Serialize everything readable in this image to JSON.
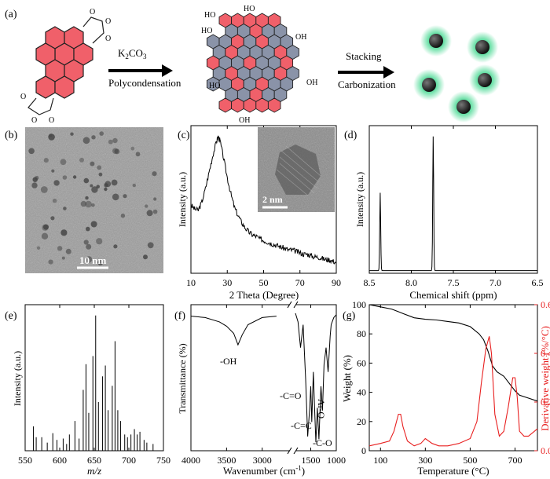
{
  "panel_labels": [
    "(a)",
    "(b)",
    "(c)",
    "(d)",
    "(e)",
    "(f)",
    "(g)"
  ],
  "panel_a": {
    "reagent": "K",
    "reagent_sub": "2",
    "reagent_tail": "CO",
    "reagent_sub2": "3",
    "step1": "Polycondensation",
    "step2_top": "Stacking",
    "step2_bottom": "Carbonization",
    "cooh_labels": [
      "HO",
      "OH",
      "HO",
      "OH",
      "HO",
      "OH",
      "OH",
      "HO",
      "OH"
    ],
    "colors": {
      "red": "#f0606a",
      "gray": "#8a93a8",
      "dot": "#2a2a2a",
      "halo": "#3dd68c"
    }
  },
  "panel_b": {
    "scale_label": "10 nm"
  },
  "inset_c": {
    "scale_label": "2 nm"
  },
  "chart_data": [
    {
      "id": "c",
      "type": "line",
      "xlabel": "2 Theta (Degree)",
      "ylabel": "Intensity (a.u.)",
      "xlim": [
        10,
        90
      ],
      "xticks": [
        10,
        30,
        50,
        70,
        90
      ],
      "x": [
        10,
        12,
        14,
        16,
        18,
        20,
        22,
        24,
        25,
        26,
        28,
        30,
        32,
        34,
        36,
        38,
        40,
        42,
        44,
        46,
        48,
        50,
        52,
        54,
        56,
        58,
        60,
        62,
        64,
        66,
        68,
        70,
        72,
        74,
        76,
        78,
        80,
        82,
        84,
        86,
        88,
        90
      ],
      "values": [
        0.5,
        0.47,
        0.46,
        0.52,
        0.62,
        0.74,
        0.86,
        0.96,
        1.0,
        0.97,
        0.84,
        0.7,
        0.58,
        0.48,
        0.42,
        0.37,
        0.33,
        0.3,
        0.28,
        0.27,
        0.25,
        0.24,
        0.23,
        0.22,
        0.21,
        0.2,
        0.19,
        0.18,
        0.17,
        0.17,
        0.16,
        0.15,
        0.14,
        0.14,
        0.13,
        0.12,
        0.12,
        0.11,
        0.1,
        0.1,
        0.09,
        0.08
      ],
      "color": "#000000"
    },
    {
      "id": "d",
      "type": "line",
      "xlabel": "Chemical shift (ppm)",
      "ylabel": "Intensity (a.u.)",
      "xlim": [
        8.5,
        6.5
      ],
      "xticks": [
        "8.5",
        "8.0",
        "7.5",
        "7.0",
        "6.5"
      ],
      "peaks": [
        {
          "x": 8.37,
          "value": 0.58
        },
        {
          "x": 7.74,
          "value": 1.0
        }
      ],
      "color": "#000000"
    },
    {
      "id": "e",
      "type": "bar",
      "xlabel": "m/z",
      "ylabel": "Intensity (a.u.)",
      "xlim": [
        550,
        750
      ],
      "xticks": [
        550,
        600,
        650,
        700,
        750
      ],
      "x": [
        562,
        566,
        574,
        582,
        590,
        596,
        605,
        610,
        614,
        622,
        628,
        634,
        638,
        642,
        648,
        652,
        656,
        662,
        666,
        670,
        676,
        680,
        684,
        688,
        694,
        698,
        703,
        708,
        712,
        716,
        722,
        726,
        735
      ],
      "values": [
        0.18,
        0.1,
        0.1,
        0.06,
        0.13,
        0.08,
        0.09,
        0.05,
        0.12,
        0.22,
        0.09,
        0.45,
        0.64,
        0.28,
        0.7,
        1.0,
        0.36,
        0.55,
        0.63,
        0.3,
        0.48,
        0.81,
        0.3,
        0.22,
        0.12,
        0.1,
        0.12,
        0.16,
        0.12,
        0.14,
        0.08,
        0.06,
        0.05
      ],
      "color": "#000000"
    },
    {
      "id": "f",
      "type": "line",
      "xlabel": "Wavenumber (cm",
      "xlabel_sup": "-1",
      "xlabel_end": ")",
      "ylabel": "Transmittance (%)",
      "xticks": [
        4000,
        3500,
        3000,
        1500,
        1000
      ],
      "x": [
        4000,
        3800,
        3600,
        3500,
        3400,
        3340,
        3280,
        3200,
        3000,
        2800,
        1800,
        1750,
        1700,
        1650,
        1600,
        1560,
        1520,
        1500,
        1480,
        1450,
        1420,
        1400,
        1370,
        1340,
        1300,
        1270,
        1240,
        1200,
        1160,
        1120,
        1100,
        1050,
        1000
      ],
      "values": [
        0.94,
        0.93,
        0.9,
        0.87,
        0.82,
        0.74,
        0.81,
        0.88,
        0.93,
        0.94,
        0.96,
        0.9,
        0.72,
        0.88,
        0.5,
        0.1,
        0.3,
        0.45,
        0.2,
        0.55,
        0.25,
        0.06,
        0.3,
        0.08,
        0.45,
        0.28,
        0.6,
        0.72,
        0.55,
        0.8,
        0.88,
        0.93,
        0.95
      ],
      "annotations": [
        "-OH",
        "-C=O",
        "-C=C",
        "-C-O",
        "Ar-O"
      ],
      "color": "#000000"
    },
    {
      "id": "g",
      "type": "line",
      "xlabel": "Temperature (°C)",
      "ylabel": "Weight (%)",
      "y2label": "Derivative weight (%/°C)",
      "xlim": [
        50,
        800
      ],
      "xticks": [
        100,
        300,
        500,
        700
      ],
      "ylim": [
        0,
        100
      ],
      "yticks": [
        0,
        20,
        40,
        60,
        80,
        100
      ],
      "y2lim": [
        0,
        0.6
      ],
      "y2ticks": [
        "0.0",
        "0.2",
        "0.4",
        "0.6"
      ],
      "series": [
        {
          "x": [
            50,
            100,
            150,
            200,
            250,
            300,
            350,
            400,
            450,
            500,
            540,
            560,
            580,
            600,
            620,
            650,
            680,
            700,
            720,
            760,
            800
          ],
          "values": [
            100,
            98.5,
            97,
            94,
            91,
            90,
            89.5,
            88.5,
            87.5,
            85,
            80,
            76,
            68,
            58,
            54,
            51,
            45,
            41,
            38,
            36,
            34
          ],
          "color": "#000000"
        },
        {
          "x": [
            50,
            100,
            140,
            160,
            180,
            190,
            200,
            220,
            250,
            280,
            300,
            330,
            360,
            400,
            450,
            500,
            530,
            550,
            570,
            585,
            595,
            610,
            630,
            650,
            670,
            690,
            700,
            710,
            720,
            740,
            760,
            800
          ],
          "values": [
            0.02,
            0.03,
            0.04,
            0.08,
            0.15,
            0.15,
            0.1,
            0.04,
            0.02,
            0.03,
            0.05,
            0.03,
            0.02,
            0.02,
            0.03,
            0.05,
            0.12,
            0.28,
            0.42,
            0.47,
            0.4,
            0.15,
            0.06,
            0.08,
            0.18,
            0.3,
            0.3,
            0.22,
            0.08,
            0.06,
            0.06,
            0.09
          ],
          "color": "#e82020"
        }
      ]
    }
  ]
}
